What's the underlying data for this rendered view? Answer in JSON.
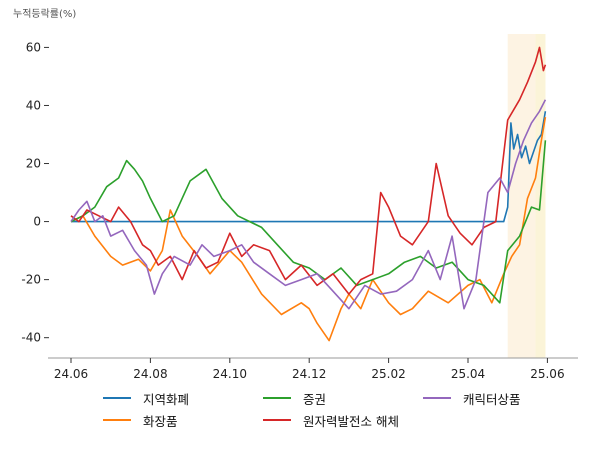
{
  "chart_data": {
    "type": "line",
    "ylabel": "누적등락률(%)",
    "xlabel": "",
    "ylim": [
      -47,
      66
    ],
    "yticks": [
      -40,
      -20,
      0,
      20,
      40,
      60
    ],
    "ytick_labels": [
      "-40",
      "-20",
      "0",
      "20",
      "40",
      "60"
    ],
    "x_domain": [
      0,
      12.3
    ],
    "xticks": [
      0,
      2,
      4,
      6,
      8,
      10,
      12
    ],
    "xtick_labels": [
      "24.06",
      "24.08",
      "24.10",
      "24.12",
      "25.02",
      "25.04",
      "25.06"
    ],
    "shaded_regions": [
      {
        "x_start": 11.0,
        "x_end": 11.95,
        "color": "#fdf3e3"
      },
      {
        "x_start": 11.7,
        "x_end": 11.95,
        "color": "#fbf4d8"
      }
    ],
    "series": [
      {
        "name": "지역화폐",
        "color": "#1f77b4",
        "x": [
          0,
          0.2,
          0.5,
          1.0,
          2.0,
          4.0,
          6.0,
          8.0,
          10.0,
          10.9,
          11.0,
          11.08,
          11.15,
          11.25,
          11.35,
          11.45,
          11.55,
          11.65,
          11.75,
          11.85,
          11.95
        ],
        "y": [
          0,
          0,
          0,
          0,
          0,
          0,
          0,
          0,
          0,
          0,
          5,
          34,
          25,
          30,
          22,
          26,
          20,
          24,
          28,
          30,
          38
        ]
      },
      {
        "name": "화장품",
        "color": "#ff7f0e",
        "x": [
          0,
          0.3,
          0.6,
          1.0,
          1.3,
          1.7,
          2.0,
          2.3,
          2.5,
          2.8,
          3.2,
          3.5,
          4.0,
          4.3,
          4.8,
          5.3,
          5.8,
          6.0,
          6.2,
          6.5,
          6.8,
          7.0,
          7.3,
          7.6,
          8.0,
          8.3,
          8.6,
          9.0,
          9.5,
          10.0,
          10.3,
          10.6,
          10.9,
          11.1,
          11.3,
          11.5,
          11.7,
          11.85,
          11.95
        ],
        "y": [
          0,
          2,
          -5,
          -12,
          -15,
          -13,
          -17,
          -10,
          4,
          -5,
          -12,
          -18,
          -10,
          -14,
          -25,
          -32,
          -28,
          -30,
          -35,
          -41,
          -30,
          -25,
          -30,
          -20,
          -28,
          -32,
          -30,
          -24,
          -28,
          -22,
          -20,
          -28,
          -18,
          -12,
          -8,
          8,
          15,
          28,
          36
        ]
      },
      {
        "name": "증권",
        "color": "#2ca02c",
        "x": [
          0,
          0.3,
          0.6,
          0.9,
          1.2,
          1.4,
          1.6,
          1.8,
          2.0,
          2.3,
          2.6,
          3.0,
          3.4,
          3.8,
          4.2,
          4.5,
          4.8,
          5.2,
          5.6,
          6.0,
          6.4,
          6.8,
          7.2,
          7.6,
          8.0,
          8.4,
          8.8,
          9.2,
          9.6,
          10.0,
          10.4,
          10.8,
          11.0,
          11.3,
          11.6,
          11.8,
          11.95
        ],
        "y": [
          0,
          2,
          5,
          12,
          15,
          21,
          18,
          14,
          8,
          0,
          2,
          14,
          18,
          8,
          2,
          0,
          -2,
          -8,
          -14,
          -16,
          -20,
          -16,
          -22,
          -20,
          -18,
          -14,
          -12,
          -16,
          -14,
          -20,
          -22,
          -28,
          -10,
          -5,
          5,
          4,
          28
        ]
      },
      {
        "name": "원자력발전소 해체",
        "color": "#d62728",
        "x": [
          0,
          0.2,
          0.4,
          0.7,
          1.0,
          1.2,
          1.5,
          1.8,
          2.0,
          2.2,
          2.5,
          2.8,
          3.1,
          3.4,
          3.7,
          4.0,
          4.3,
          4.6,
          5.0,
          5.4,
          5.8,
          6.2,
          6.6,
          7.0,
          7.3,
          7.6,
          7.8,
          8.0,
          8.3,
          8.6,
          9.0,
          9.2,
          9.5,
          9.8,
          10.1,
          10.4,
          10.7,
          11.0,
          11.3,
          11.5,
          11.7,
          11.8,
          11.9,
          11.95
        ],
        "y": [
          2,
          0,
          4,
          2,
          0,
          5,
          0,
          -8,
          -10,
          -15,
          -12,
          -20,
          -10,
          -16,
          -14,
          -4,
          -12,
          -8,
          -10,
          -20,
          -15,
          -22,
          -18,
          -25,
          -20,
          -18,
          10,
          5,
          -5,
          -8,
          0,
          20,
          2,
          -4,
          -8,
          -2,
          0,
          35,
          42,
          48,
          55,
          60,
          52,
          54
        ]
      },
      {
        "name": "캐릭터상품",
        "color": "#9467bd",
        "x": [
          0,
          0.2,
          0.4,
          0.6,
          0.8,
          1.0,
          1.3,
          1.6,
          1.9,
          2.1,
          2.3,
          2.6,
          3.0,
          3.3,
          3.6,
          4.0,
          4.3,
          4.6,
          5.0,
          5.4,
          5.8,
          6.2,
          6.6,
          7.0,
          7.4,
          7.8,
          8.2,
          8.6,
          9.0,
          9.3,
          9.6,
          9.9,
          10.2,
          10.5,
          10.8,
          11.0,
          11.2,
          11.4,
          11.6,
          11.8,
          11.95
        ],
        "y": [
          0,
          4,
          7,
          0,
          2,
          -5,
          -3,
          -10,
          -15,
          -25,
          -18,
          -12,
          -15,
          -8,
          -12,
          -10,
          -8,
          -14,
          -18,
          -22,
          -20,
          -18,
          -24,
          -30,
          -22,
          -25,
          -24,
          -20,
          -10,
          -20,
          -5,
          -30,
          -20,
          10,
          15,
          10,
          20,
          28,
          34,
          38,
          42
        ]
      }
    ]
  }
}
